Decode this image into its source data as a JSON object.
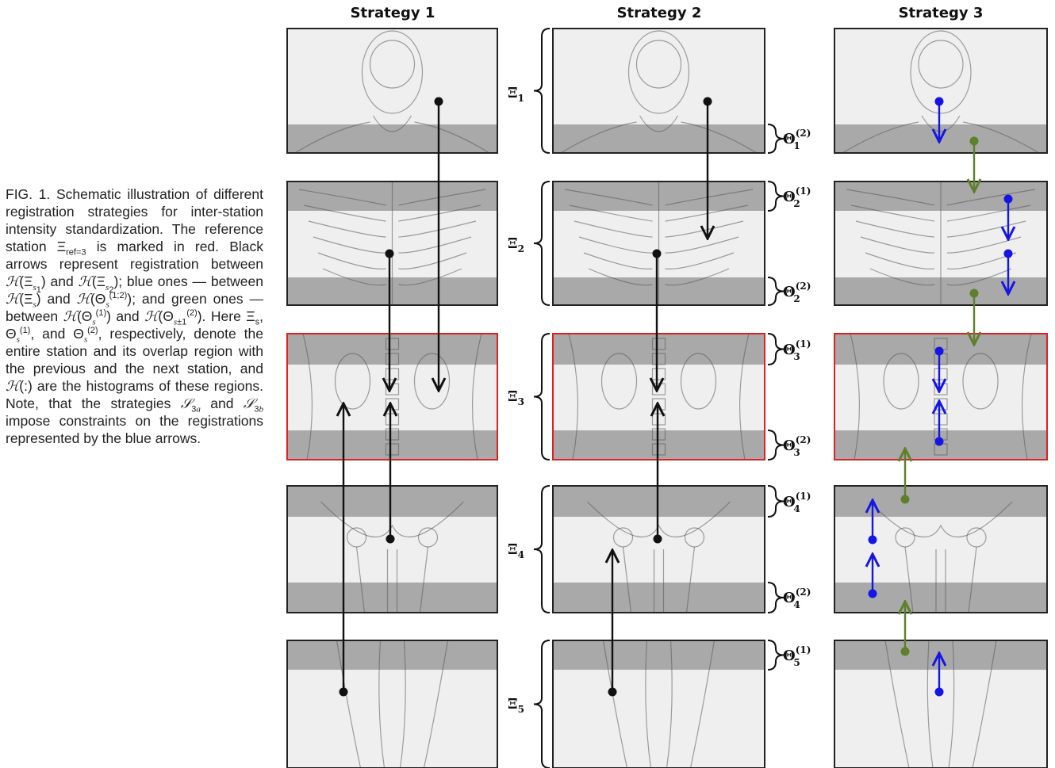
{
  "strategies": [
    "Strategy 1",
    "Strategy 2",
    "Strategy 3"
  ],
  "caption": {
    "label": "FIG. 1.",
    "text_html": "FIG. 1. Schematic illustration of different registration strategies for inter-station intensity standardization. The reference station &Xi;<sub>ref=3</sub> is marked in red. Black arrows represent registration between <i>&#x210B;</i>(&Xi;<sub><i>s</i><sub>1</sub></sub>) and <i>&#x210B;</i>(&Xi;<sub><i>s</i><sub>2</sub></sub>); blue ones &mdash; between <i>&#x210B;</i>(&Xi;<sub><i>s</i></sub>) and <i>&#x210B;</i>(&Theta;<sub><i>s</i></sub><sup>(1;2)</sup>); and green ones &mdash; between <i>&#x210B;</i>(&Theta;<sub><i>s</i></sub><sup>(1)</sup>) and <i>&#x210B;</i>(&Theta;<sub><i>s</i>&plusmn;1</sub><sup>(2)</sup>). Here &Xi;<sub>s</sub>, &Theta;<sub><i>s</i></sub><sup>(1)</sup>, and &Theta;<sub><i>s</i></sub><sup>(2)</sup>, respectively, denote the entire station and its overlap region with the previous and the next station, and <i>&#x210B;</i>(:) are the histograms of these regions. Note, that the strategies <i>&#x1D4AE;</i><sub>3<i>a</i></sub> and <i>&#x1D4AE;</i><sub>3<i>b</i></sub> impose constraints on the registrations represented by the blue arrows."
  },
  "xi_labels": [
    "Ξ1",
    "Ξ2",
    "Ξ3",
    "Ξ4",
    "Ξ5"
  ],
  "theta_labels": [
    "Θ1(2)",
    "Θ2(1)",
    "Θ2(2)",
    "Θ3(1)",
    "Θ3(2)",
    "Θ4(1)",
    "Θ4(2)",
    "Θ5(1)"
  ],
  "reference_station": 3,
  "colors": {
    "reference": "#e02020",
    "black_arrow": "#111111",
    "blue_arrow": "#1515e6",
    "green_arrow": "#5e7f2c",
    "overlap": "#a9a9a9",
    "station": "#efefef"
  }
}
